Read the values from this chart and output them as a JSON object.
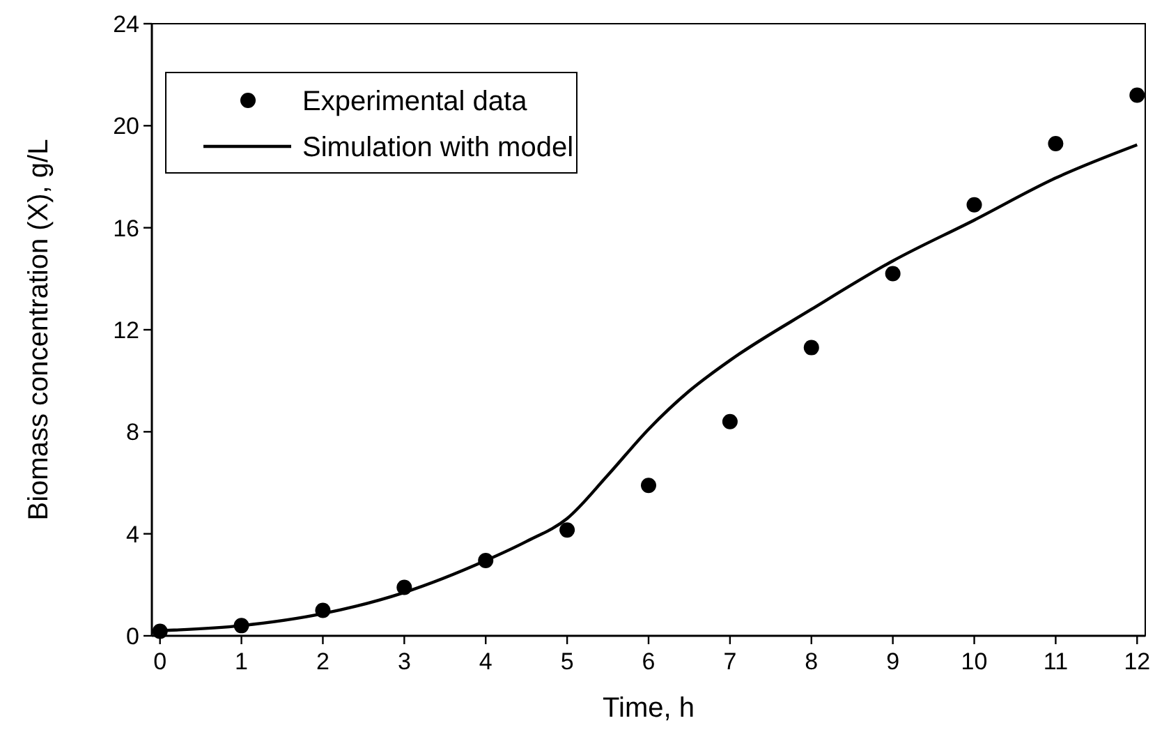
{
  "chart_data": {
    "type": "scatter",
    "xlabel": "Time, h",
    "ylabel": "Biomass concentration (X), g/L",
    "xlim": [
      -0.1,
      12.1
    ],
    "xticks": [
      0,
      1,
      2,
      3,
      4,
      5,
      6,
      7,
      8,
      9,
      10,
      11,
      12
    ],
    "ylim": [
      0,
      24
    ],
    "yticks": [
      0,
      4,
      8,
      12,
      16,
      20,
      24
    ],
    "grid": false,
    "legend": "top left",
    "series": [
      {
        "name": "Experimental data",
        "marker": "circle",
        "color": "#000000",
        "x": [
          0,
          1,
          2,
          3,
          4,
          5,
          6,
          7,
          8,
          9,
          10,
          11,
          12
        ],
        "values": [
          0.18,
          0.4,
          1.0,
          1.9,
          2.95,
          4.15,
          5.9,
          8.4,
          11.3,
          14.2,
          16.9,
          19.3,
          21.2
        ]
      },
      {
        "name": "Simulation with model",
        "type": "line",
        "line_style": "solid",
        "color": "#000000",
        "x": [
          0,
          1,
          2,
          3,
          4,
          4.5,
          5,
          5.5,
          6,
          6.5,
          7,
          8,
          9,
          10,
          11,
          12
        ],
        "values": [
          0.2,
          0.4,
          0.87,
          1.7,
          2.95,
          3.7,
          4.6,
          6.3,
          8.1,
          9.6,
          10.8,
          12.8,
          14.7,
          16.3,
          17.95,
          19.25
        ]
      }
    ]
  }
}
